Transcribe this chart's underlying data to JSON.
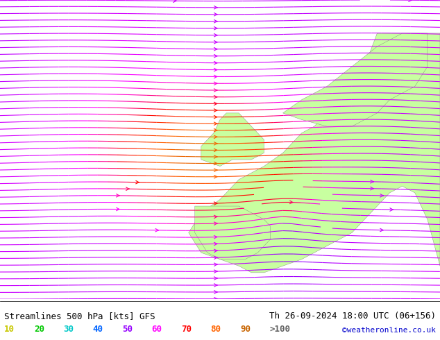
{
  "title_left": "Streamlines 500 hPa [kts] GFS",
  "title_right": "Th 26-09-2024 18:00 UTC (06+156)",
  "credit": "©weatheronline.co.uk",
  "legend_values": [
    "10",
    "20",
    "30",
    "40",
    "50",
    "60",
    "70",
    "80",
    "90",
    ">100"
  ],
  "legend_colors": [
    "#c8c800",
    "#00c800",
    "#00c8c8",
    "#0064ff",
    "#9600ff",
    "#ff00ff",
    "#ff0000",
    "#ff6400",
    "#c86400",
    "#646464"
  ],
  "background_color": "#e0e0e0",
  "land_color": "#c8ffa0",
  "streamline_colors": {
    "low": "#00aaff",
    "mid_low": "#00cc00",
    "mid": "#cccc00",
    "mid_high": "#00cccc",
    "high": "#0000ff",
    "very_high": "#8800aa",
    "extreme": "#ff00ff"
  },
  "figsize": [
    6.34,
    4.9
  ],
  "dpi": 100,
  "map_extent": [
    -40,
    30,
    30,
    75
  ],
  "font_size_title": 9,
  "font_size_legend": 9,
  "font_size_credit": 8
}
